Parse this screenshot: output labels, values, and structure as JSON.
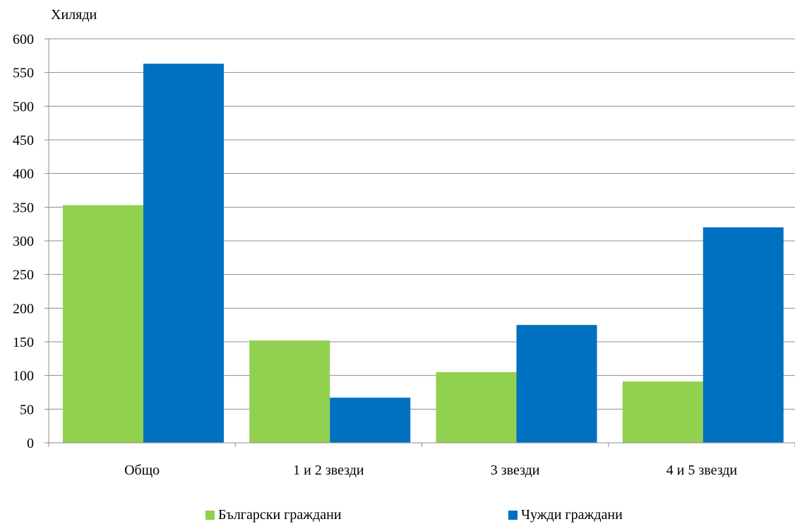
{
  "chart_data": {
    "type": "bar",
    "unit_label": "Хиляди",
    "categories": [
      "Общо",
      "1 и 2 звезди",
      "3 звезди",
      "4 и 5 звезди"
    ],
    "series": [
      {
        "name": "Български граждани",
        "color": "#92d050",
        "values": [
          353,
          152,
          105,
          91
        ]
      },
      {
        "name": "Чужди граждани",
        "color": "#0070c0",
        "values": [
          563,
          67,
          175,
          320
        ]
      }
    ],
    "ylim": [
      0,
      600
    ],
    "yticks": [
      0,
      50,
      100,
      150,
      200,
      250,
      300,
      350,
      400,
      450,
      500,
      550,
      600
    ],
    "grid": true,
    "legend_position": "bottom"
  }
}
